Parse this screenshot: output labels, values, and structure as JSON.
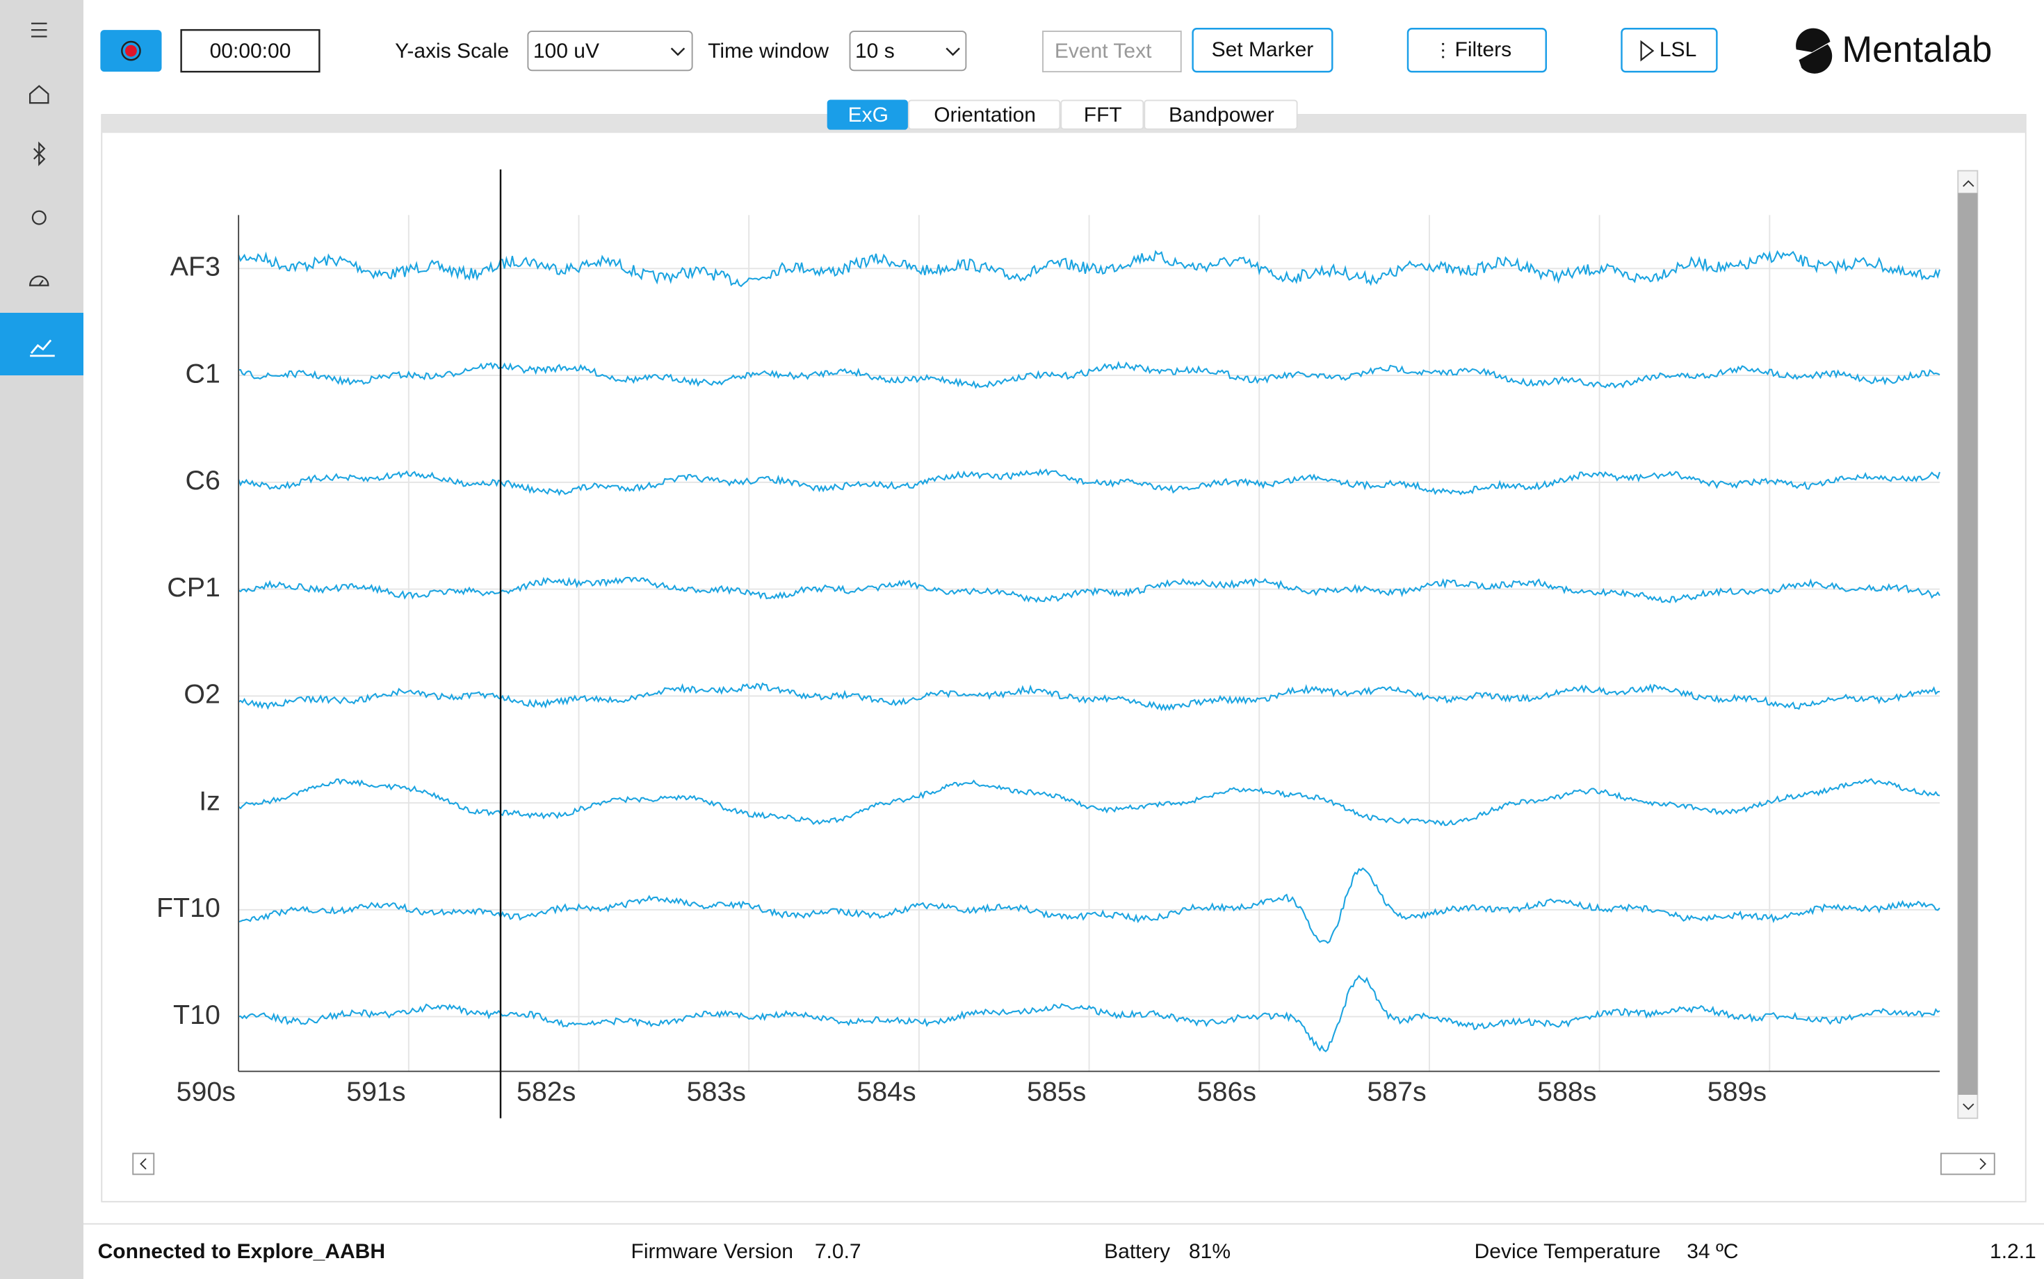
{
  "toolbar": {
    "timer": "00:00:00",
    "y_scale_label": "Y-axis Scale",
    "y_scale_value": "100 uV",
    "time_window_label": "Time window",
    "time_window_value": "10 s",
    "event_text_placeholder": "Event Text",
    "set_marker": "Set Marker",
    "filters": "Filters",
    "lsl": "LSL",
    "brand": "Mentalab"
  },
  "tabs": [
    "ExG",
    "Orientation",
    "FFT",
    "Bandpower"
  ],
  "plot": {
    "channels": [
      "AF3",
      "C1",
      "C6",
      "CP1",
      "O2",
      "Iz",
      "FT10",
      "T10"
    ],
    "x_tick_labels": [
      "590s",
      "591s",
      "582s",
      "583s",
      "584s",
      "585s",
      "586s",
      "587s",
      "588s",
      "589s"
    ]
  },
  "status": {
    "connection": "Connected to Explore_AABH",
    "firmware_label": "Firmware Version",
    "firmware_value": "7.0.7",
    "battery_label": "Battery",
    "battery_value": "81%",
    "temperature_label": "Device Temperature",
    "temperature_value": "34 ºC",
    "app_version": "1.2.1"
  }
}
